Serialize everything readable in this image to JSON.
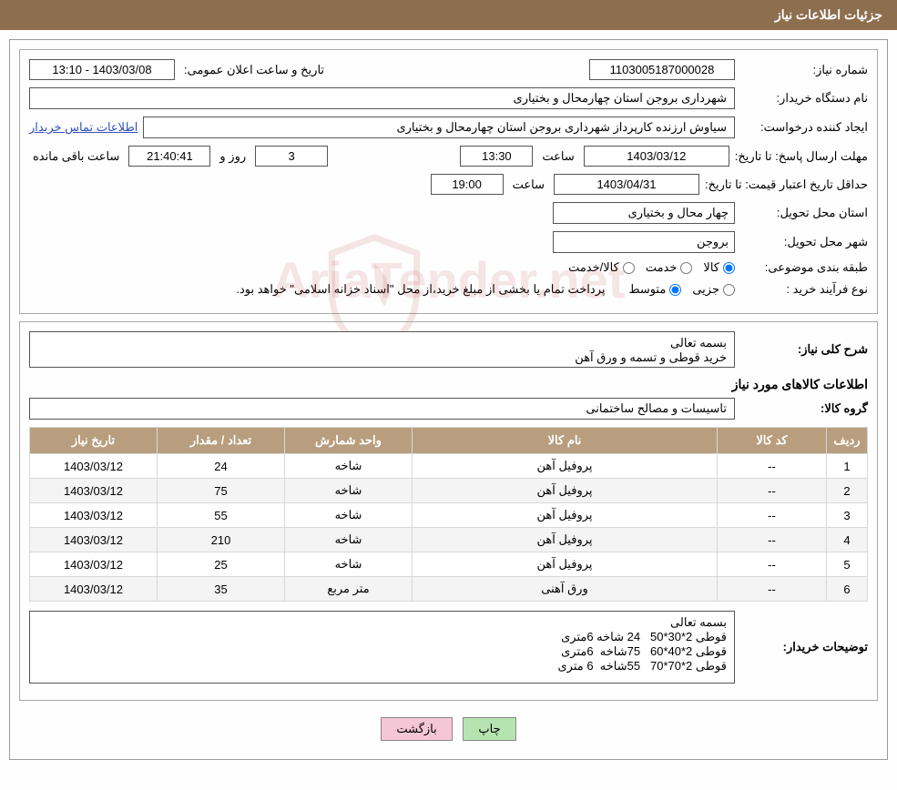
{
  "header": {
    "title": "جزئیات اطلاعات نیاز"
  },
  "fields": {
    "request_number": {
      "label": "شماره نیاز:",
      "value": "1103005187000028"
    },
    "announce_datetime": {
      "label": "تاریخ و ساعت اعلان عمومی:",
      "value": "1403/03/08 - 13:10"
    },
    "buyer_org": {
      "label": "نام دستگاه خریدار:",
      "value": "شهرداری بروجن استان چهارمحال و بختیاری"
    },
    "requester": {
      "label": "ایجاد کننده درخواست:",
      "value": "سیاوش ارزنده کارپرداز شهرداری بروجن استان چهارمحال و بختیاری"
    },
    "buyer_contact_link": "اطلاعات تماس خریدار",
    "response_deadline": {
      "label": "مهلت ارسال پاسخ: تا تاریخ:",
      "date": "1403/03/12",
      "time_label": "ساعت",
      "time": "13:30",
      "days": "3",
      "days_label": "روز و",
      "remaining": "21:40:41",
      "remaining_label": "ساعت باقی مانده"
    },
    "price_validity": {
      "label": "حداقل تاریخ اعتبار قیمت: تا تاریخ:",
      "date": "1403/04/31",
      "time_label": "ساعت",
      "time": "19:00"
    },
    "delivery_province": {
      "label": "استان محل تحویل:",
      "value": "چهار محال و بختیاری"
    },
    "delivery_city": {
      "label": "شهر محل تحویل:",
      "value": "بروجن"
    },
    "subject_class": {
      "label": "طبقه بندی موضوعی:",
      "options": {
        "goods": "کالا",
        "service": "خدمت",
        "goods_service": "کالا/خدمت"
      },
      "selected": "goods"
    },
    "purchase_type": {
      "label": "نوع فرآیند خرید :",
      "options": {
        "partial": "جزیی",
        "medium": "متوسط"
      },
      "selected": "medium",
      "note": "پرداخت تمام یا بخشی از مبلغ خرید،از محل \"اسناد خزانه اسلامی\" خواهد بود."
    }
  },
  "description": {
    "label": "شرح کلی نیاز:",
    "value": "بسمه تعالی\nخرید قوطی و تسمه و ورق آهن"
  },
  "items_heading": "اطلاعات کالاهای مورد نیاز",
  "group": {
    "label": "گروه کالا:",
    "value": "تاسیسات و مصالح ساختمانی"
  },
  "table": {
    "columns": [
      "ردیف",
      "کد کالا",
      "نام کالا",
      "واحد شمارش",
      "تعداد / مقدار",
      "تاریخ نیاز"
    ],
    "rows": [
      [
        "1",
        "--",
        "پروفیل آهن",
        "شاخه",
        "24",
        "1403/03/12"
      ],
      [
        "2",
        "--",
        "پروفیل آهن",
        "شاخه",
        "75",
        "1403/03/12"
      ],
      [
        "3",
        "--",
        "پروفیل آهن",
        "شاخه",
        "55",
        "1403/03/12"
      ],
      [
        "4",
        "--",
        "پروفیل آهن",
        "شاخه",
        "210",
        "1403/03/12"
      ],
      [
        "5",
        "--",
        "پروفیل آهن",
        "شاخه",
        "25",
        "1403/03/12"
      ],
      [
        "6",
        "--",
        "ورق آهنی",
        "متر مربع",
        "35",
        "1403/03/12"
      ]
    ]
  },
  "buyer_notes": {
    "label": "توضیحات خریدار:",
    "value": "بسمه تعالی\nقوطی 2*30*50   24 شاخه 6متری\nقوطی 2*40*60   75شاخه  6متری\nقوطی 2*70*70   55شاخه  6 متری"
  },
  "buttons": {
    "print": "چاپ",
    "back": "بازگشت"
  },
  "watermark": "AriaTender.net",
  "colors": {
    "header_bg": "#8d6e4f",
    "th_bg": "#b89e7e",
    "btn_green": "#b6e4b0",
    "btn_pink": "#f5c6d6"
  }
}
